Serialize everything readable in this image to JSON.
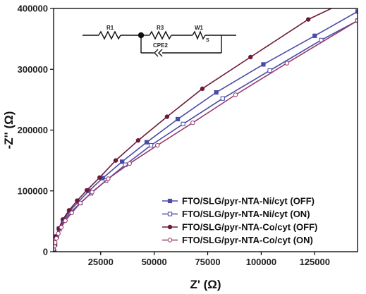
{
  "chart_data": {
    "type": "line",
    "xlabel": "Z' (Ω)",
    "ylabel": "-Z'' (Ω)",
    "xlim": [
      3000,
      145000
    ],
    "ylim": [
      0,
      400000
    ],
    "x_ticks": [
      25000,
      50000,
      75000,
      100000,
      125000
    ],
    "x_tick_labels": [
      "25000",
      "50000",
      "75000",
      "100000",
      "125000"
    ],
    "y_ticks": [
      0,
      100000,
      200000,
      300000,
      400000
    ],
    "y_tick_labels": [
      "0",
      "100000",
      "200000",
      "300000",
      "400000"
    ],
    "grid": false,
    "legend_position": "bottom-right",
    "series": [
      {
        "name": "FTO/SLG/pyr-NTA-Ni/cyt (OFF)",
        "color": "#4a4aa8",
        "marker": "filled-square",
        "x": [
          3200,
          3600,
          4300,
          5500,
          7500,
          10500,
          14500,
          19500,
          26000,
          35000,
          46500,
          61000,
          79000,
          101000,
          125000,
          145000
        ],
        "y": [
          0,
          12000,
          25000,
          38000,
          52000,
          67000,
          82000,
          100000,
          121000,
          148000,
          180000,
          218000,
          262000,
          308000,
          355000,
          395000
        ]
      },
      {
        "name": "FTO/SLG/pyr-NTA-Ni/cyt (ON)",
        "color": "#4a4aa8",
        "marker": "open-square",
        "x": [
          3300,
          3700,
          4500,
          5800,
          7800,
          11000,
          15500,
          20500,
          27500,
          36500,
          48500,
          63500,
          82000,
          104000,
          128000,
          145000
        ],
        "y": [
          0,
          12000,
          25000,
          37000,
          51000,
          65000,
          80000,
          96000,
          117000,
          143000,
          175000,
          210000,
          252000,
          298000,
          348000,
          380000
        ]
      },
      {
        "name": "FTO/SLG/pyr-NTA-Co/cyt (OFF)",
        "color": "#6b1a3a",
        "marker": "filled-circle",
        "x": [
          3100,
          3500,
          4200,
          5400,
          7300,
          10200,
          14000,
          18500,
          24500,
          32000,
          42500,
          56000,
          72500,
          95000,
          122000,
          140000
        ],
        "y": [
          0,
          12000,
          25000,
          38000,
          53000,
          68000,
          84000,
          101000,
          122000,
          150000,
          183000,
          222000,
          268000,
          320000,
          382000,
          412000
        ]
      },
      {
        "name": "FTO/SLG/pyr-NTA-Co/cyt (ON)",
        "color": "#9b3a6a",
        "marker": "open-circle",
        "x": [
          2800,
          3000,
          3300,
          3700,
          4300,
          5200,
          6600,
          8500,
          11500,
          15500,
          21000,
          28500,
          38500,
          51500,
          68000,
          88000,
          112000,
          145000
        ],
        "y": [
          0,
          4000,
          9000,
          15000,
          22000,
          30000,
          40000,
          51000,
          64000,
          80000,
          98000,
          120000,
          145000,
          175000,
          212000,
          258000,
          310000,
          380000
        ]
      }
    ],
    "inset_circuit": {
      "labels": [
        "R1",
        "R3",
        "W1",
        "CPE2",
        "S"
      ]
    }
  }
}
